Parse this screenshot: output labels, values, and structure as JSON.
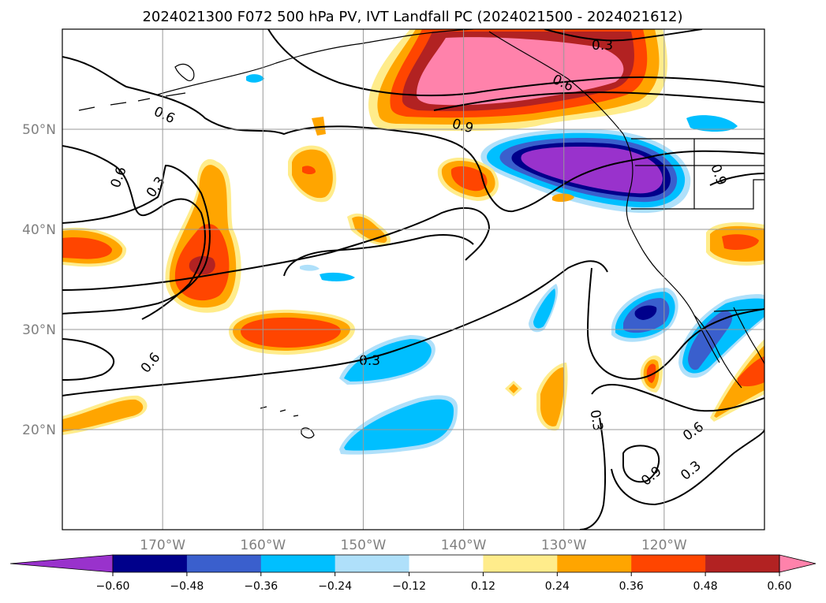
{
  "chart_data": {
    "type": "heatmap",
    "title": "2024021300 F072 500 hPa PV, IVT Landfall PC (2024021500 - 2024021612)",
    "xlabel": "",
    "ylabel": "",
    "xlim": [
      -180,
      -110
    ],
    "ylim": [
      10,
      60
    ],
    "grid": true,
    "x_ticks": [
      -170,
      -160,
      -150,
      -140,
      -130,
      -120
    ],
    "x_tick_labels": [
      "170°W",
      "160°W",
      "150°W",
      "140°W",
      "130°W",
      "120°W"
    ],
    "y_ticks": [
      20,
      30,
      40,
      50
    ],
    "y_tick_labels": [
      "20°N",
      "30°N",
      "40°N",
      "50°N"
    ],
    "colorbar": {
      "levels": [
        -0.72,
        -0.6,
        -0.48,
        -0.36,
        -0.24,
        -0.12,
        0.12,
        0.24,
        0.36,
        0.48,
        0.6,
        0.72
      ],
      "tick_labels": [
        "−0.60",
        "−0.48",
        "−0.36",
        "−0.24",
        "−0.12",
        "0.12",
        "0.24",
        "0.36",
        "0.48",
        "0.60"
      ],
      "colors": [
        "#9932cc",
        "#00008b",
        "#3a5fcd",
        "#00bfff",
        "#afe0fa",
        "#ffffff",
        "#ffec8b",
        "#ffa500",
        "#ff4500",
        "#b22222",
        "#ff82ab"
      ],
      "extend": "both"
    },
    "fill_features": [
      {
        "name": "pink-high-anomaly-gulf-of-alaska",
        "level": 0.6,
        "lon": -137,
        "lat": 56,
        "rlon": 11,
        "rlat": 4
      },
      {
        "name": "purple-low-anomaly-pacific-northwest",
        "level": -0.6,
        "lon": -129,
        "lat": 46,
        "rlon": 9,
        "rlat": 3.5
      },
      {
        "name": "red-anomaly-170w",
        "level": 0.48,
        "lon": -166,
        "lat": 36,
        "rlon": 3,
        "rlat": 4
      },
      {
        "name": "orange-anomaly-158w",
        "level": 0.36,
        "lon": -158,
        "lat": 30,
        "rlon": 7,
        "rlat": 2
      },
      {
        "name": "blue-anomaly-147w",
        "level": -0.24,
        "lon": -146,
        "lat": 27,
        "rlon": 5,
        "rlat": 2
      },
      {
        "name": "blue-anomaly-145w",
        "level": -0.24,
        "lon": -144,
        "lat": 20,
        "rlon": 5,
        "rlat": 2.5
      },
      {
        "name": "blue-anomaly-120w",
        "level": -0.48,
        "lon": -120,
        "lat": 32,
        "rlon": 3,
        "rlat": 2
      },
      {
        "name": "orange-anomaly-west-edge",
        "level": 0.36,
        "lon": -177,
        "lat": 38,
        "rlon": 3.5,
        "rlat": 1.8
      }
    ],
    "contours": {
      "levels": [
        0.3,
        0.6,
        0.9
      ],
      "labels": [
        "0.3",
        "0.6",
        "0.9"
      ]
    }
  }
}
